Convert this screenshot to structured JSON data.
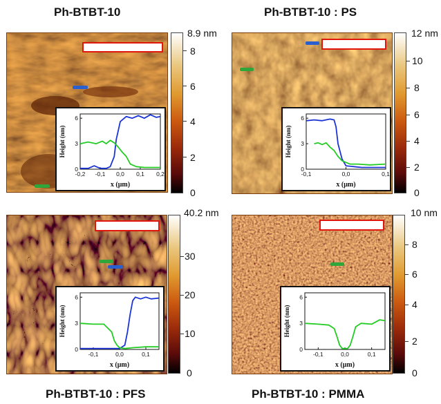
{
  "panels": [
    {
      "id": "tl",
      "title": "Ph-BTBT-10",
      "colorbar_max_label": "8.9 nm",
      "colorbar_ticks": [
        "8",
        "6",
        "4",
        "2",
        "0"
      ],
      "inset": {
        "ylabel": "Height (nm)",
        "xlabel": "x (μm)",
        "x_ticks": [
          "-0,2",
          "-0,1",
          "0,0",
          "0,1",
          "0,2"
        ],
        "y_ticks": [
          "6",
          "3",
          "0"
        ],
        "xlim": [
          -0.2,
          0.2
        ],
        "ylim": [
          0,
          6.5
        ]
      }
    },
    {
      "id": "tr",
      "title": "Ph-BTBT-10 : PS",
      "colorbar_max_label": "12 nm",
      "colorbar_ticks": [
        "10",
        "8",
        "6",
        "4",
        "2",
        "0"
      ],
      "inset": {
        "ylabel": "Height (nm)",
        "xlabel": "x (μm)",
        "x_ticks": [
          "-0,1",
          "0,0",
          "0,1"
        ],
        "y_ticks": [
          "6",
          "3",
          "0"
        ],
        "xlim": [
          -0.1,
          0.1
        ],
        "ylim": [
          0,
          6.5
        ]
      }
    },
    {
      "id": "bl",
      "title": "Ph-BTBT-10 : PFS",
      "colorbar_max_label": "40.2 nm",
      "colorbar_ticks": [
        "30",
        "20",
        "10",
        "0"
      ],
      "inset": {
        "ylabel": "Height (nm)",
        "xlabel": "x (μm)",
        "x_ticks": [
          "-0,1",
          "0,0",
          "0,1"
        ],
        "y_ticks": [
          "6",
          "3",
          "0"
        ],
        "xlim": [
          -0.15,
          0.15
        ],
        "ylim": [
          0,
          6.5
        ]
      }
    },
    {
      "id": "br",
      "title": "Ph-BTBT-10 : PMMA",
      "colorbar_max_label": "10 nm",
      "colorbar_ticks": [
        "8",
        "6",
        "4",
        "2",
        "0"
      ],
      "inset": {
        "ylabel": "Height (nm)",
        "xlabel": "x (μm)",
        "x_ticks": [
          "-0,1",
          "0,0",
          "0,1"
        ],
        "y_ticks": [
          "6",
          "3",
          "0"
        ],
        "xlim": [
          -0.15,
          0.15
        ],
        "ylim": [
          0,
          6.5
        ]
      }
    }
  ],
  "chart_data": [
    {
      "type": "line",
      "panel": "Ph-BTBT-10",
      "xlabel": "x (μm)",
      "ylabel": "Height (nm)",
      "xlim": [
        -0.2,
        0.2
      ],
      "ylim": [
        0,
        6.5
      ],
      "series": [
        {
          "color": "#1a33d6",
          "x": [
            -0.2,
            -0.16,
            -0.13,
            -0.1,
            -0.07,
            -0.05,
            -0.03,
            -0.02,
            0.0,
            0.03,
            0.06,
            0.09,
            0.12,
            0.15,
            0.18,
            0.2
          ],
          "y": [
            0.1,
            0.1,
            0.4,
            0.1,
            0.1,
            0.3,
            1.5,
            3.5,
            5.6,
            6.2,
            6.0,
            6.3,
            6.0,
            6.4,
            6.1,
            6.2
          ]
        },
        {
          "color": "#22cc22",
          "x": [
            -0.2,
            -0.16,
            -0.12,
            -0.09,
            -0.07,
            -0.05,
            -0.03,
            -0.01,
            0.01,
            0.03,
            0.05,
            0.08,
            0.12,
            0.16,
            0.2
          ],
          "y": [
            3.0,
            3.2,
            3.0,
            3.3,
            3.0,
            3.4,
            3.1,
            2.6,
            2.0,
            1.5,
            0.6,
            0.3,
            0.2,
            0.2,
            0.2
          ]
        }
      ]
    },
    {
      "type": "line",
      "panel": "Ph-BTBT-10 : PS",
      "xlabel": "x (μm)",
      "ylabel": "Height (nm)",
      "xlim": [
        -0.1,
        0.1
      ],
      "ylim": [
        0,
        6.5
      ],
      "series": [
        {
          "color": "#1a33d6",
          "x": [
            -0.1,
            -0.08,
            -0.06,
            -0.04,
            -0.03,
            -0.025,
            -0.02,
            -0.01,
            0.0,
            0.02,
            0.04,
            0.07,
            0.1
          ],
          "y": [
            5.7,
            5.8,
            5.7,
            5.9,
            5.8,
            5.0,
            3.0,
            1.2,
            0.4,
            0.3,
            0.2,
            0.2,
            0.2
          ]
        },
        {
          "color": "#22cc22",
          "x": [
            -0.08,
            -0.07,
            -0.06,
            -0.05,
            -0.04,
            -0.03,
            -0.02,
            -0.01,
            0.0,
            0.01,
            0.03,
            0.06,
            0.1
          ],
          "y": [
            3.0,
            3.1,
            2.9,
            3.1,
            2.6,
            2.2,
            1.5,
            1.0,
            0.8,
            0.6,
            0.6,
            0.5,
            0.6
          ]
        }
      ]
    },
    {
      "type": "line",
      "panel": "Ph-BTBT-10 : PFS",
      "xlabel": "x (μm)",
      "ylabel": "Height (nm)",
      "xlim": [
        -0.15,
        0.15
      ],
      "ylim": [
        0,
        6.5
      ],
      "series": [
        {
          "color": "#1a33d6",
          "x": [
            -0.15,
            -0.1,
            -0.05,
            0.0,
            0.02,
            0.03,
            0.04,
            0.05,
            0.06,
            0.08,
            0.1,
            0.12,
            0.15
          ],
          "y": [
            0.1,
            0.1,
            0.1,
            0.1,
            0.5,
            2.0,
            4.0,
            5.6,
            6.0,
            5.8,
            6.0,
            5.8,
            5.9
          ]
        },
        {
          "color": "#22cc22",
          "x": [
            -0.15,
            -0.1,
            -0.06,
            -0.03,
            -0.02,
            -0.01,
            0.0,
            0.02,
            0.05,
            0.1,
            0.15
          ],
          "y": [
            3.0,
            2.9,
            2.9,
            2.0,
            1.0,
            0.5,
            0.2,
            0.1,
            0.2,
            0.3,
            0.3
          ]
        }
      ]
    },
    {
      "type": "line",
      "panel": "Ph-BTBT-10 : PMMA",
      "xlabel": "x (μm)",
      "ylabel": "Height (nm)",
      "xlim": [
        -0.15,
        0.15
      ],
      "ylim": [
        0,
        6.5
      ],
      "series": [
        {
          "color": "#22cc22",
          "x": [
            -0.15,
            -0.1,
            -0.06,
            -0.04,
            -0.03,
            -0.02,
            -0.01,
            0.0,
            0.01,
            0.02,
            0.03,
            0.04,
            0.06,
            0.1,
            0.13,
            0.15
          ],
          "y": [
            3.0,
            2.9,
            2.8,
            2.4,
            1.5,
            0.5,
            0.1,
            0.1,
            0.1,
            0.5,
            1.5,
            2.6,
            3.0,
            2.9,
            3.4,
            3.3
          ]
        }
      ]
    }
  ]
}
